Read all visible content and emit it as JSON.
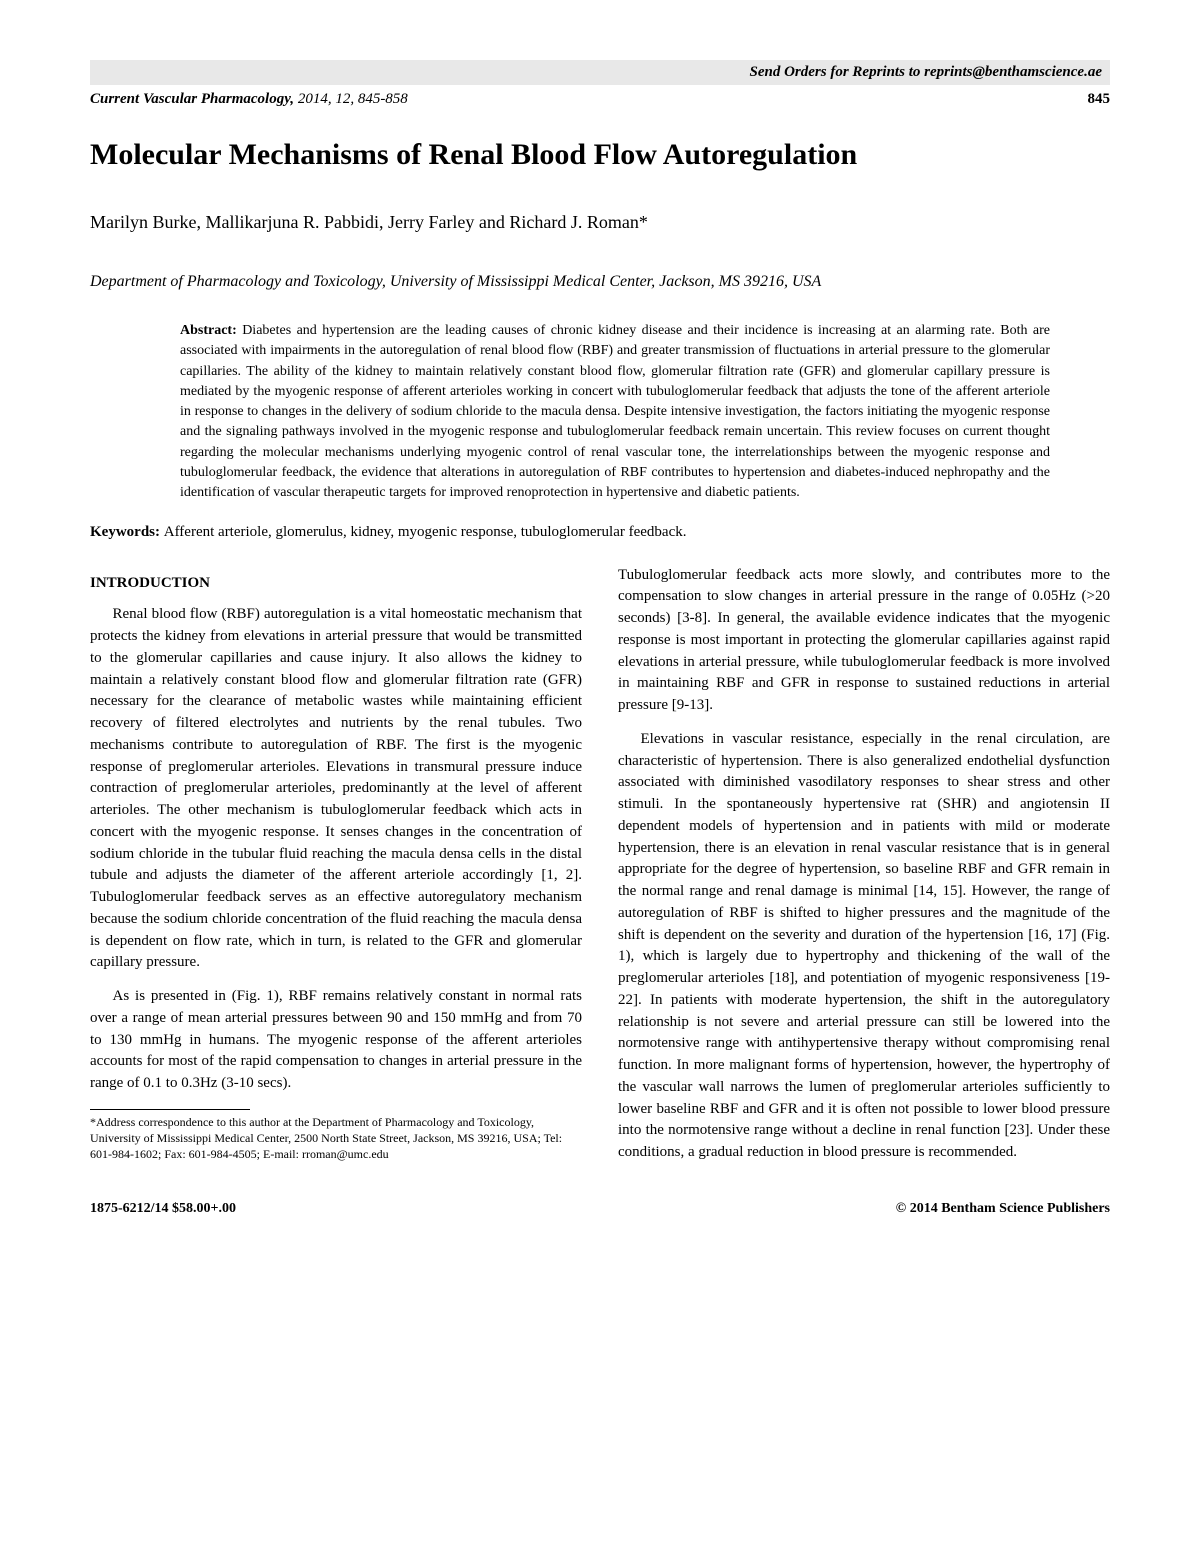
{
  "reprint_notice": "Send Orders for Reprints to reprints@benthamscience.ae",
  "journal_meta": {
    "name_italic": "Current Vascular Pharmacology,",
    "year_vol_pages": " 2014, 12, 845-858",
    "page_number": "845"
  },
  "title": "Molecular Mechanisms of Renal Blood Flow Autoregulation",
  "authors": "Marilyn Burke, Mallikarjuna R. Pabbidi, Jerry Farley and Richard J. Roman*",
  "affiliation": "Department of Pharmacology and Toxicology, University of Mississippi Medical Center, Jackson, MS 39216, USA",
  "abstract": {
    "label": "Abstract: ",
    "text": "Diabetes and hypertension are the leading causes of chronic kidney disease and their incidence is increasing at an alarming rate. Both are associated with impairments in the autoregulation of renal blood flow (RBF) and greater transmission of fluctuations in arterial pressure to the glomerular capillaries. The ability of the kidney to maintain relatively constant blood flow, glomerular filtration rate (GFR) and glomerular capillary pressure is mediated by the myogenic response of afferent arterioles working in concert with tubuloglomerular feedback that adjusts the tone of the afferent arteriole in response to changes in the delivery of sodium chloride to the macula densa. Despite intensive investigation, the factors initiating the myogenic response and the signaling pathways involved in the myogenic response and tubuloglomerular feedback remain uncertain. This review focuses on current thought regarding the molecular mechanisms underlying myogenic control of renal vascular tone, the interrelationships between the myogenic response and tubuloglomerular feedback, the evidence that alterations in autoregulation of RBF contributes to hypertension and diabetes-induced nephropathy and the identification of vascular therapeutic targets for improved renoprotection in hypertensive and diabetic patients."
  },
  "keywords": {
    "label": "Keywords: ",
    "text": "Afferent arteriole, glomerulus, kidney, myogenic response, tubuloglomerular feedback."
  },
  "section_heading": "INTRODUCTION",
  "body": {
    "p1": "Renal blood flow (RBF) autoregulation is a vital homeostatic mechanism that protects the kidney from elevations in arterial pressure that would be transmitted to the glomerular capillaries and cause injury. It also allows the kidney to maintain a relatively constant blood flow and glomerular filtration rate (GFR) necessary for the clearance of metabolic wastes while maintaining efficient recovery of filtered electrolytes and nutrients by the renal tubules. Two mechanisms contribute to autoregulation of RBF. The first is the myogenic response of preglomerular arterioles. Elevations in transmural pressure induce contraction of preglomerular arterioles, predominantly at the level of afferent arterioles. The other mechanism is tubuloglomerular feedback which acts in concert with the myogenic response. It senses changes in the concentration of sodium chloride in the tubular fluid reaching the macula densa cells in the distal tubule and adjusts the diameter of the afferent arteriole accordingly [1, 2]. Tubuloglomerular feedback serves as an effective autoregulatory mechanism because the sodium chloride concentration of the fluid reaching the macula densa is dependent on flow rate, which in turn, is related to the GFR and glomerular capillary pressure.",
    "p2": "As is presented in (Fig. 1), RBF remains relatively constant in normal rats over a range of mean arterial pressures between 90 and 150 mmHg and from 70 to 130 mmHg in humans. The myogenic response of the afferent arterioles accounts for most of the rapid compensation to changes in arterial pressure in the range of 0.1 to 0.3Hz (3-10 secs).",
    "p3": "Tubuloglomerular feedback acts more slowly, and contributes more to the compensation to slow changes in arterial pressure in the range of 0.05Hz (>20 seconds) [3-8]. In general, the available evidence indicates that the myogenic response is most important in protecting the glomerular capillaries against rapid elevations in arterial pressure, while tubuloglomerular feedback is more involved in maintaining RBF and GFR in response to sustained reductions in arterial pressure [9-13].",
    "p4": "Elevations in vascular resistance, especially in the renal circulation, are characteristic of hypertension. There is also generalized endothelial dysfunction associated with diminished vasodilatory responses to shear stress and other stimuli. In the spontaneously hypertensive rat (SHR) and angiotensin II dependent models of hypertension and in patients with mild or moderate hypertension, there is an elevation in renal vascular resistance that is in general appropriate for the degree of hypertension, so baseline RBF and GFR remain in the normal range and renal damage is minimal [14, 15]. However, the range of autoregulation of RBF is shifted to higher pressures and the magnitude of the shift is dependent on the severity and duration of the hypertension [16, 17] (Fig. 1), which is largely due to hypertrophy and thickening of the wall of the preglomerular arterioles [18], and potentiation of myogenic responsiveness [19-22]. In patients with moderate hypertension, the shift in the autoregulatory relationship is not severe and arterial pressure can still be lowered into the normotensive range with antihypertensive therapy without compromising renal function. In more malignant forms of hypertension, however, the hypertrophy of the vascular wall narrows the lumen of preglomerular arterioles sufficiently to lower baseline RBF and GFR and it is often not possible to lower blood pressure into the normotensive range without a decline in renal function [23]. Under these conditions, a gradual reduction in blood pressure is recommended."
  },
  "footnote": "*Address correspondence to this author at the Department of Pharmacology and Toxicology, University of Mississippi Medical Center, 2500 North State Street, Jackson, MS 39216, USA; Tel: 601-984-1602; Fax: 601-984-4505; E-mail: rroman@umc.edu",
  "footer": {
    "left": "1875-6212/14 $58.00+.00",
    "right": "© 2014 Bentham Science Publishers"
  }
}
